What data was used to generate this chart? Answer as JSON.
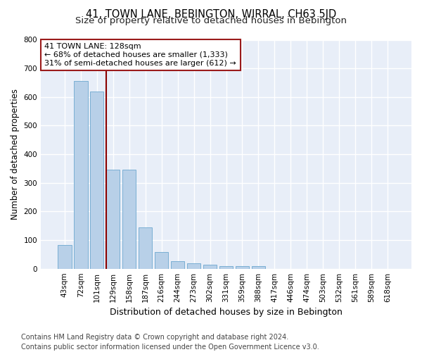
{
  "title": "41, TOWN LANE, BEBINGTON, WIRRAL, CH63 5JD",
  "subtitle": "Size of property relative to detached houses in Bebington",
  "xlabel": "Distribution of detached houses by size in Bebington",
  "ylabel": "Number of detached properties",
  "categories": [
    "43sqm",
    "72sqm",
    "101sqm",
    "129sqm",
    "158sqm",
    "187sqm",
    "216sqm",
    "244sqm",
    "273sqm",
    "302sqm",
    "331sqm",
    "359sqm",
    "388sqm",
    "417sqm",
    "446sqm",
    "474sqm",
    "503sqm",
    "532sqm",
    "561sqm",
    "589sqm",
    "618sqm"
  ],
  "values": [
    82,
    655,
    620,
    345,
    345,
    145,
    58,
    27,
    20,
    15,
    8,
    10,
    10,
    0,
    0,
    0,
    0,
    0,
    0,
    0,
    0
  ],
  "bar_color": "#b8d0e8",
  "bar_edge_color": "#7aafd4",
  "vline_color": "#8b0000",
  "vline_x_index": 3,
  "annotation_text": "41 TOWN LANE: 128sqm\n← 68% of detached houses are smaller (1,333)\n31% of semi-detached houses are larger (612) →",
  "annotation_box_color": "#ffffff",
  "annotation_box_edge_color": "#9b1b1b",
  "ylim": [
    0,
    800
  ],
  "yticks": [
    0,
    100,
    200,
    300,
    400,
    500,
    600,
    700,
    800
  ],
  "background_color": "#e8eef8",
  "grid_color": "#ffffff",
  "footer": "Contains HM Land Registry data © Crown copyright and database right 2024.\nContains public sector information licensed under the Open Government Licence v3.0.",
  "title_fontsize": 10.5,
  "subtitle_fontsize": 9.5,
  "xlabel_fontsize": 9,
  "ylabel_fontsize": 8.5,
  "tick_fontsize": 7.5,
  "footer_fontsize": 7,
  "annotation_fontsize": 8
}
